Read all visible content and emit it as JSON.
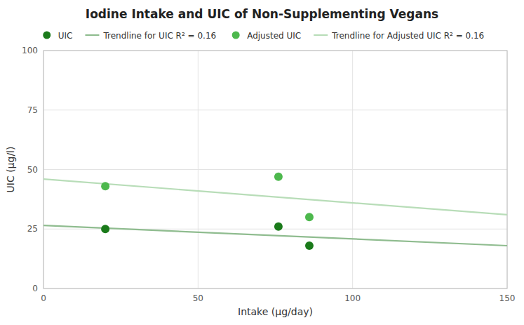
{
  "chart_data": {
    "type": "scatter",
    "title": "Iodine Intake and UIC of Non-Supplementing Vegans",
    "x_label": "Intake (μg/day)",
    "y_label": "UIC (μg/l)",
    "xlim": [
      0,
      150
    ],
    "ylim": [
      0,
      100
    ],
    "xticks": [
      0,
      50,
      100,
      150
    ],
    "yticks": [
      0,
      25,
      50,
      75,
      100
    ],
    "grid": true,
    "legend": "top",
    "series": [
      {
        "name": "UIC",
        "type": "scatter",
        "marker": "circle",
        "color": "#1a7a1a",
        "x": [
          20,
          76,
          86
        ],
        "values": [
          25,
          26,
          18
        ]
      },
      {
        "name": "Trendline for UIC R² = 0.16",
        "type": "line",
        "line_style": "solid",
        "color": "#8fbc8f",
        "x": [
          0,
          150
        ],
        "values": [
          26.5,
          18.0
        ]
      },
      {
        "name": "Adjusted UIC",
        "type": "scatter",
        "marker": "circle",
        "color": "#4db84d",
        "x": [
          20,
          76,
          86
        ],
        "values": [
          43,
          47,
          30
        ]
      },
      {
        "name": "Trendline for Adjusted UIC R² = 0.16",
        "type": "line",
        "line_style": "solid",
        "color": "#b8ddb8",
        "x": [
          0,
          150
        ],
        "values": [
          46.0,
          31.0
        ]
      }
    ]
  }
}
